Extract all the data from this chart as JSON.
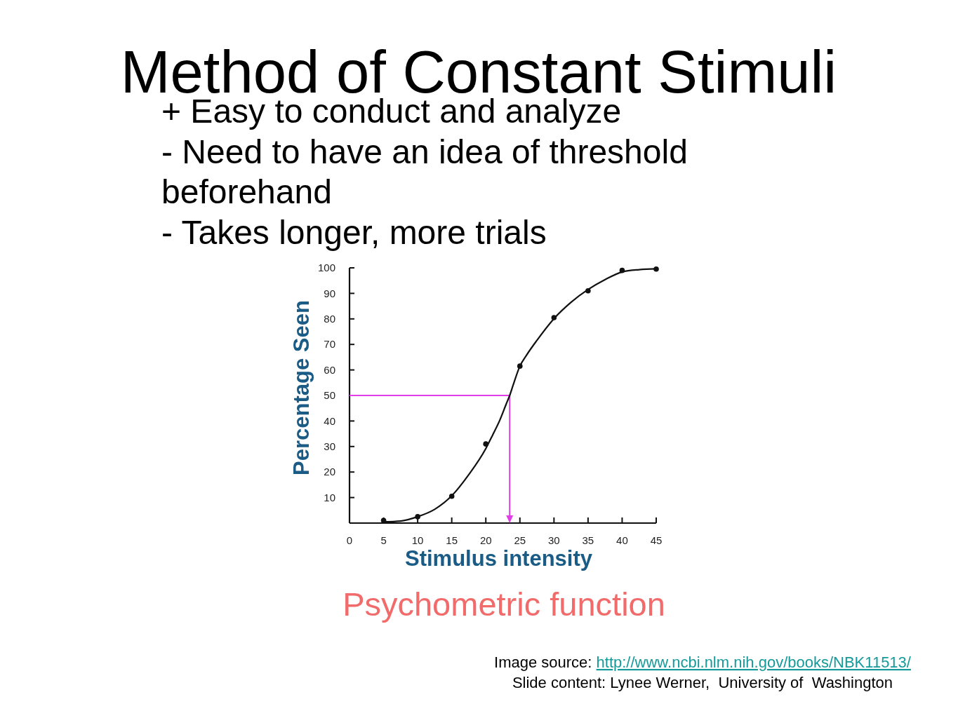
{
  "chart_data": {
    "type": "line",
    "title": "Method of Constant Stimuli",
    "subtitle": "Psychometric function",
    "xlabel": "Stimulus intensity",
    "ylabel": "Percentage Seen",
    "annotations": [
      "+ Easy to conduct and analyze",
      "- Need to have an idea of threshold beforehand",
      "- Takes longer, more trials",
      "Image source: http://www.ncbi.nlm.nih.gov/books/NBK11513/",
      "Slide content: Lynee Werner,  University of  Washington"
    ],
    "xlim": [
      0,
      45
    ],
    "xticks": [
      0,
      5,
      10,
      15,
      20,
      25,
      30,
      35,
      40,
      45
    ],
    "ylim": [
      0,
      100
    ],
    "yticks": [
      10,
      20,
      30,
      40,
      50,
      60,
      70,
      80,
      90,
      100
    ],
    "series": [
      {
        "color": "#111111",
        "x": [
          5,
          7.5,
          10,
          12.5,
          15,
          17.5,
          20,
          21,
          22,
          23,
          23.5,
          24,
          25,
          26,
          27.5,
          30,
          32.5,
          35,
          37.5,
          40,
          42.5,
          45
        ],
        "values": [
          0.5,
          0.8,
          2.5,
          5.4,
          10.7,
          19,
          29.2,
          34.5,
          40,
          46.7,
          50,
          54,
          61.5,
          65.9,
          71.6,
          80.1,
          86.5,
          91.5,
          95.4,
          98.4,
          99.3,
          99.6
        ]
      },
      {
        "type": "scatter",
        "color": "#111111",
        "marker": "circle",
        "x": [
          5,
          10,
          15,
          20,
          25,
          30,
          35,
          40,
          45
        ],
        "values": [
          1,
          2.5,
          10.5,
          31,
          61.5,
          80.5,
          91,
          99,
          99.5
        ]
      }
    ]
  }
}
